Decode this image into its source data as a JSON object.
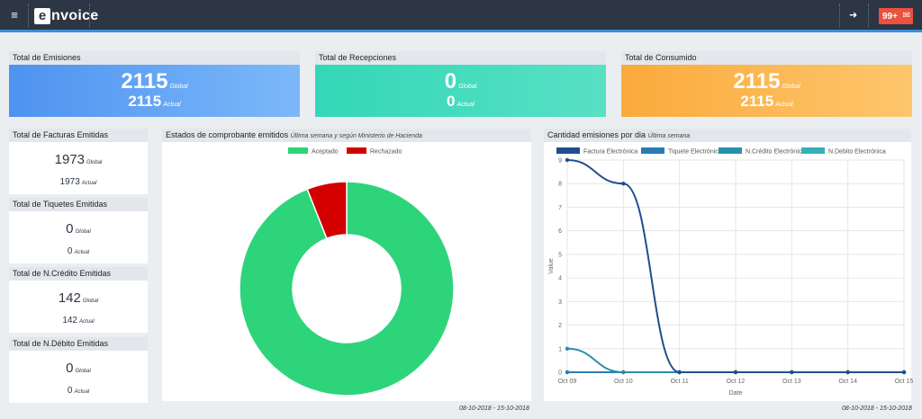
{
  "topbar": {
    "menu_icon": "≡",
    "logo_box": "e",
    "logo_rest": "nvoice",
    "logout_icon": "➜",
    "badge": "99+",
    "mail_icon": "✉"
  },
  "summary": [
    {
      "title": "Total de Emisiones",
      "global": "2115",
      "actual": "2115",
      "global_tag": "Global",
      "actual_tag": "Actual"
    },
    {
      "title": "Total de Recepciones",
      "global": "0",
      "actual": "0",
      "global_tag": "Global",
      "actual_tag": "Actual"
    },
    {
      "title": "Total de Consumido",
      "global": "2115",
      "actual": "2115",
      "global_tag": "Global",
      "actual_tag": "Actual"
    }
  ],
  "left_cards": [
    {
      "title": "Total de Facturas Emitidas",
      "global": "1973",
      "actual": "1973",
      "global_tag": "Global",
      "actual_tag": "Actual"
    },
    {
      "title": "Total de Tiquetes Emitidas",
      "global": "0",
      "actual": "0",
      "global_tag": "Global",
      "actual_tag": "Actual"
    },
    {
      "title": "Total de N.Crédito Emitidas",
      "global": "142",
      "actual": "142",
      "global_tag": "Global",
      "actual_tag": "Actual"
    },
    {
      "title": "Total de N.Débito Emitidas",
      "global": "0",
      "actual": "0",
      "global_tag": "Global",
      "actual_tag": "Actual"
    }
  ],
  "donut_panel": {
    "title": "Estados de comprobante emitidos",
    "subtitle": "Última semana y según Ministerio de Hacienda",
    "footer": "08-10-2018 - 15-10-2018"
  },
  "line_panel": {
    "title": "Cantidad emisiones por dia",
    "subtitle": "Última semana",
    "footer": "08-10-2018 - 15-10-2018"
  },
  "chart_data": [
    {
      "type": "pie",
      "categories": [
        "Aceptado",
        "Rechazado"
      ],
      "values": [
        94,
        6
      ],
      "colors": [
        "#2ed47a",
        "#d40000"
      ],
      "donut": true,
      "legend": "top"
    },
    {
      "type": "line",
      "x": [
        "Oct 09",
        "Oct 10",
        "Oct 11",
        "Oct 12",
        "Oct 13",
        "Oct 14",
        "Oct 15"
      ],
      "xlabel": "Date",
      "ylabel": "Value",
      "ylim": [
        0,
        9
      ],
      "yticks": [
        0,
        1,
        2,
        3,
        4,
        5,
        6,
        7,
        8,
        9
      ],
      "grid": true,
      "legend": "top",
      "series": [
        {
          "name": "Factura Electrónica",
          "color": "#1f4e8c",
          "values": [
            9,
            8,
            0,
            0,
            0,
            0,
            0
          ]
        },
        {
          "name": "Tiquete Electrónico",
          "color": "#2a7bb4",
          "values": [
            0,
            0,
            0,
            0,
            0,
            0,
            0
          ]
        },
        {
          "name": "N.Crédito Electrónica",
          "color": "#2a8fa8",
          "values": [
            1,
            0,
            0,
            0,
            0,
            0,
            0
          ]
        },
        {
          "name": "N.Debito Electrónica",
          "color": "#35b0b8",
          "values": [
            0,
            0,
            0,
            0,
            0,
            0,
            0
          ]
        }
      ]
    }
  ]
}
